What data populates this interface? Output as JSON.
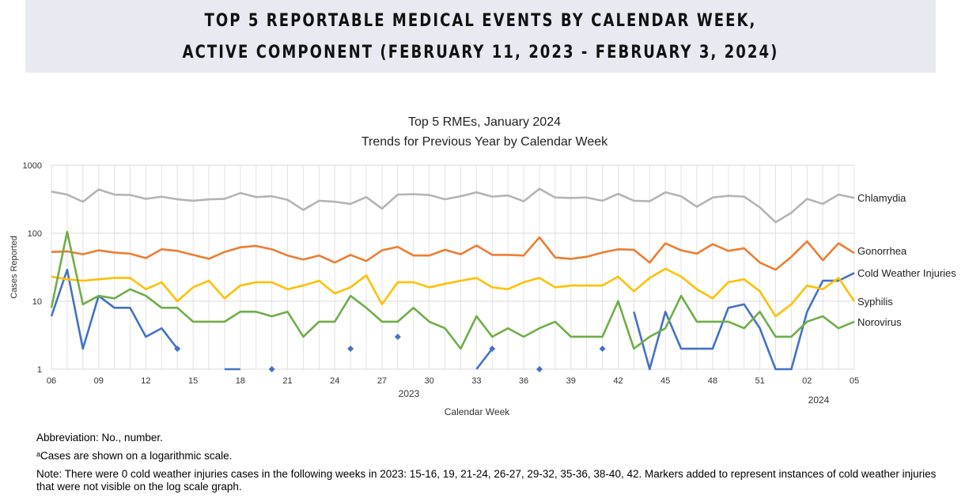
{
  "header": {
    "line1": "TOP 5 REPORTABLE MEDICAL EVENTS BY CALENDAR WEEK,",
    "line2": "ACTIVE COMPONENT (FEBRUARY 11, 2023 - FEBRUARY 3, 2024)"
  },
  "chart_data": {
    "type": "line",
    "title": "Top 5 RMEs, January 2024",
    "subtitle": "Trends for Previous Year by Calendar Week",
    "xlabel": "Calendar Week",
    "ylabel": "Cases Reported",
    "yscale": "log",
    "ylim": [
      1,
      1000
    ],
    "yticks": [
      "1",
      "10",
      "100",
      "1000"
    ],
    "grid": true,
    "legend": "right (labels at line ends)",
    "year_labels": [
      "2023",
      "2024"
    ],
    "x": [
      "06",
      "07",
      "08",
      "09",
      "10",
      "11",
      "12",
      "13",
      "14",
      "15",
      "16",
      "17",
      "18",
      "19",
      "20",
      "21",
      "22",
      "23",
      "24",
      "25",
      "26",
      "27",
      "28",
      "29",
      "30",
      "31",
      "32",
      "33",
      "34",
      "35",
      "36",
      "37",
      "38",
      "39",
      "40",
      "41",
      "42",
      "43",
      "44",
      "45",
      "46",
      "47",
      "48",
      "49",
      "50",
      "51",
      "52",
      "01",
      "02",
      "03",
      "04",
      "05"
    ],
    "xticks": [
      "06",
      "09",
      "12",
      "15",
      "18",
      "21",
      "24",
      "27",
      "30",
      "33",
      "36",
      "39",
      "42",
      "45",
      "48",
      "51",
      "02",
      "05"
    ],
    "series": [
      {
        "name": "Chlamydia",
        "color": "#b4b4b4",
        "values": [
          410,
          370,
          290,
          440,
          370,
          365,
          320,
          345,
          315,
          300,
          315,
          320,
          390,
          340,
          350,
          310,
          220,
          300,
          290,
          270,
          340,
          230,
          370,
          375,
          365,
          315,
          350,
          400,
          345,
          360,
          295,
          450,
          335,
          330,
          335,
          300,
          380,
          300,
          295,
          400,
          350,
          245,
          335,
          355,
          345,
          240,
          145,
          200,
          320,
          270,
          370,
          330
        ]
      },
      {
        "name": "Gonorrhea",
        "color": "#ed7d31",
        "values": [
          53,
          54,
          49,
          56,
          52,
          50,
          43,
          58,
          55,
          48,
          42,
          53,
          62,
          65,
          58,
          47,
          41,
          47,
          37,
          48,
          39,
          56,
          63,
          47,
          47,
          57,
          49,
          66,
          48,
          48,
          47,
          87,
          44,
          42,
          45,
          52,
          58,
          57,
          37,
          71,
          56,
          50,
          69,
          55,
          60,
          37,
          29,
          45,
          76,
          40,
          71,
          51
        ]
      },
      {
        "name": "Cold Weather Injuries",
        "color": "#4472c4",
        "values": [
          6,
          29,
          2,
          12,
          8,
          8,
          3,
          4,
          2,
          0,
          0,
          1,
          1,
          0,
          1,
          0,
          0,
          0,
          0,
          2,
          0,
          0,
          3,
          0,
          0,
          0,
          0,
          1,
          2,
          0,
          0,
          1,
          0,
          0,
          0,
          2,
          0,
          7,
          1,
          7,
          2,
          2,
          2,
          8,
          9,
          4,
          1,
          1,
          7,
          20,
          20,
          26
        ],
        "markers": [
          "14",
          "20",
          "25",
          "28",
          "34",
          "37",
          "41"
        ]
      },
      {
        "name": "Syphilis",
        "color": "#ffc000",
        "values": [
          23,
          21,
          20,
          21,
          22,
          22,
          15,
          19,
          10,
          16,
          20,
          11,
          17,
          19,
          19,
          15,
          17,
          20,
          13,
          16,
          24,
          9,
          19,
          19,
          16,
          18,
          20,
          22,
          16,
          15,
          19,
          22,
          16,
          17,
          17,
          17,
          23,
          14,
          22,
          30,
          23,
          15,
          11,
          19,
          21,
          14,
          6,
          9,
          17,
          15,
          22,
          10
        ]
      },
      {
        "name": "Norovirus",
        "color": "#70ad47",
        "values": [
          8,
          105,
          9,
          12,
          11,
          15,
          12,
          8,
          8,
          5,
          5,
          5,
          7,
          7,
          6,
          7,
          3,
          5,
          5,
          12,
          8,
          5,
          5,
          8,
          5,
          4,
          2,
          6,
          3,
          4,
          3,
          4,
          5,
          3,
          3,
          3,
          10,
          2,
          3,
          4,
          12,
          5,
          5,
          5,
          4,
          7,
          3,
          3,
          5,
          6,
          4,
          5
        ]
      }
    ]
  },
  "notes": {
    "abbreviation": "Abbreviation: No., number.",
    "a": "ᵃCases are shown on a logarithmic scale.",
    "note": "Note: There were 0 cold weather injuries cases in the following weeks in 2023: 15-16, 19, 21-24, 26-27, 29-32, 35-36, 38-40, 42. Markers added to represent instances of cold weather injuries that were not visible on the log scale graph."
  }
}
